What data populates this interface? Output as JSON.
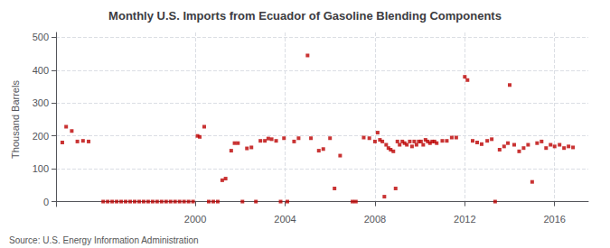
{
  "chart_data": {
    "type": "scatter",
    "title": "Monthly U.S. Imports from Ecuador of Gasoline Blending Components",
    "ylabel": "Thousand Barrels",
    "annotations": [
      "Source: U.S. Energy Information Administration"
    ],
    "color": "#bb0000",
    "marker": "square",
    "grid": true,
    "xlim": [
      1993.8,
      2017.5
    ],
    "ylim": [
      -15,
      515
    ],
    "xticks": [
      2000,
      2004,
      2008,
      2012,
      2016
    ],
    "yticks": [
      0,
      100,
      200,
      300,
      400,
      500
    ],
    "x": [
      1994.08,
      1994.25,
      1994.5,
      1994.75,
      1995.0,
      1995.25,
      1995.9,
      1996.1,
      1996.3,
      1996.5,
      1996.7,
      1996.9,
      1997.1,
      1997.3,
      1997.5,
      1997.7,
      1997.9,
      1998.1,
      1998.3,
      1998.5,
      1998.7,
      1998.9,
      1999.1,
      1999.3,
      1999.5,
      1999.7,
      1999.9,
      2000.1,
      2000.2,
      2000.4,
      2000.6,
      2000.8,
      2001.0,
      2001.2,
      2001.35,
      2001.6,
      2001.75,
      2001.9,
      2002.1,
      2002.3,
      2002.5,
      2002.7,
      2002.9,
      2003.1,
      2003.25,
      2003.4,
      2003.6,
      2003.8,
      2003.95,
      2004.1,
      2004.4,
      2004.6,
      2005.0,
      2005.15,
      2005.5,
      2005.7,
      2006.0,
      2006.2,
      2006.45,
      2007.0,
      2007.15,
      2007.5,
      2007.75,
      2008.0,
      2008.12,
      2008.22,
      2008.33,
      2008.42,
      2008.5,
      2008.6,
      2008.7,
      2008.82,
      2008.92,
      2009.0,
      2009.1,
      2009.22,
      2009.32,
      2009.42,
      2009.55,
      2009.65,
      2009.75,
      2009.85,
      2009.95,
      2010.05,
      2010.15,
      2010.25,
      2010.35,
      2010.45,
      2010.55,
      2010.65,
      2010.75,
      2011.0,
      2011.2,
      2011.42,
      2011.62,
      2012.0,
      2012.12,
      2012.35,
      2012.55,
      2012.75,
      2013.0,
      2013.2,
      2013.35,
      2013.55,
      2013.75,
      2013.92,
      2014.0,
      2014.2,
      2014.42,
      2014.62,
      2014.82,
      2015.0,
      2015.22,
      2015.42,
      2015.62,
      2015.82,
      2016.0,
      2016.22,
      2016.42,
      2016.62,
      2016.82
    ],
    "values": [
      180,
      228,
      215,
      183,
      185,
      183,
      0,
      0,
      0,
      0,
      0,
      0,
      0,
      0,
      0,
      0,
      0,
      0,
      0,
      0,
      0,
      0,
      0,
      0,
      0,
      0,
      0,
      200,
      197,
      228,
      0,
      0,
      0,
      65,
      70,
      155,
      178,
      178,
      0,
      162,
      165,
      0,
      185,
      185,
      192,
      190,
      185,
      0,
      193,
      0,
      183,
      193,
      445,
      193,
      155,
      160,
      193,
      40,
      140,
      0,
      0,
      195,
      193,
      183,
      210,
      188,
      183,
      15,
      173,
      163,
      158,
      153,
      40,
      183,
      173,
      183,
      178,
      173,
      183,
      168,
      183,
      173,
      183,
      183,
      173,
      188,
      183,
      178,
      183,
      183,
      178,
      185,
      185,
      195,
      195,
      380,
      370,
      185,
      180,
      175,
      185,
      190,
      0,
      158,
      168,
      178,
      355,
      173,
      153,
      163,
      173,
      60,
      178,
      183,
      163,
      173,
      168,
      173,
      163,
      168,
      165
    ]
  }
}
